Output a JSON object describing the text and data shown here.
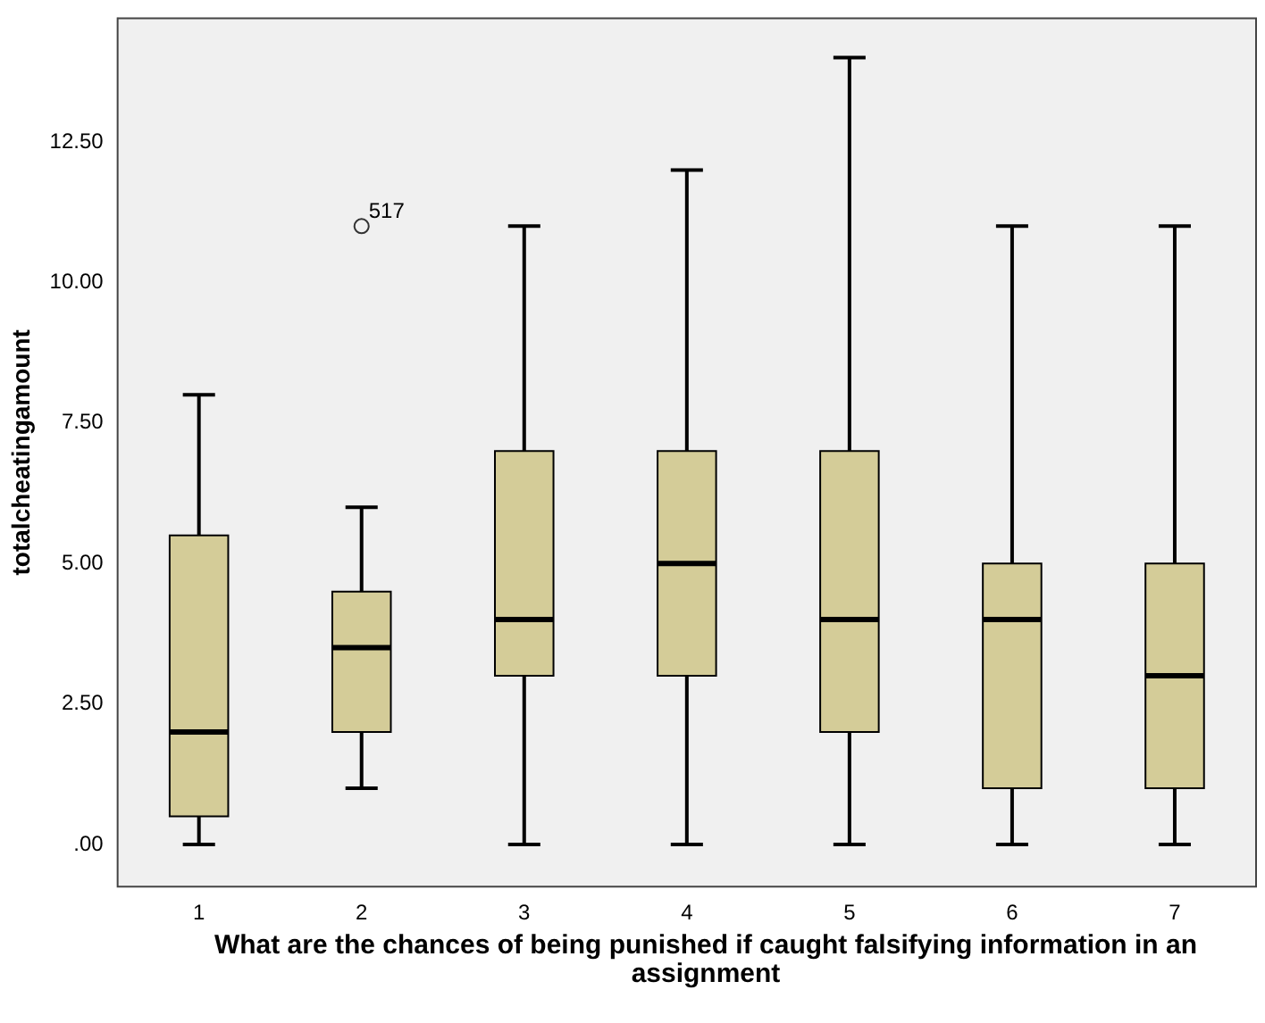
{
  "chart_data": {
    "type": "box",
    "xlabel": "What are the chances of being punished if caught falsifying information in an assignment",
    "ylabel": "totalcheatingamount",
    "categories": [
      "1",
      "2",
      "3",
      "4",
      "5",
      "6",
      "7"
    ],
    "color": "#d4cc98",
    "boxes": [
      {
        "low": 0,
        "q1": 0.5,
        "median": 2,
        "q3": 5.5,
        "high": 8
      },
      {
        "low": 1,
        "q1": 2,
        "median": 3.5,
        "q3": 4.5,
        "high": 6,
        "outliers": [
          11
        ]
      },
      {
        "low": 0,
        "q1": 3,
        "median": 4,
        "q3": 7,
        "high": 11
      },
      {
        "low": 0,
        "q1": 3,
        "median": 5,
        "q3": 7,
        "high": 12
      },
      {
        "low": 0,
        "q1": 2,
        "median": 4,
        "q3": 7,
        "high": 14
      },
      {
        "low": 0,
        "q1": 1,
        "median": 4,
        "q3": 5,
        "high": 11
      },
      {
        "low": 0,
        "q1": 1,
        "median": 3,
        "q3": 5,
        "high": 11
      }
    ],
    "annotations": [
      "517"
    ],
    "ylim": [
      -0.75,
      14.7
    ],
    "yticks": [
      {
        "value": 0,
        "label": ".00"
      },
      {
        "value": 2.5,
        "label": "2.50"
      },
      {
        "value": 5,
        "label": "5.00"
      },
      {
        "value": 7.5,
        "label": "7.50"
      },
      {
        "value": 10,
        "label": "10.00"
      },
      {
        "value": 12.5,
        "label": "12.50"
      }
    ],
    "grid": false,
    "legend": false
  }
}
